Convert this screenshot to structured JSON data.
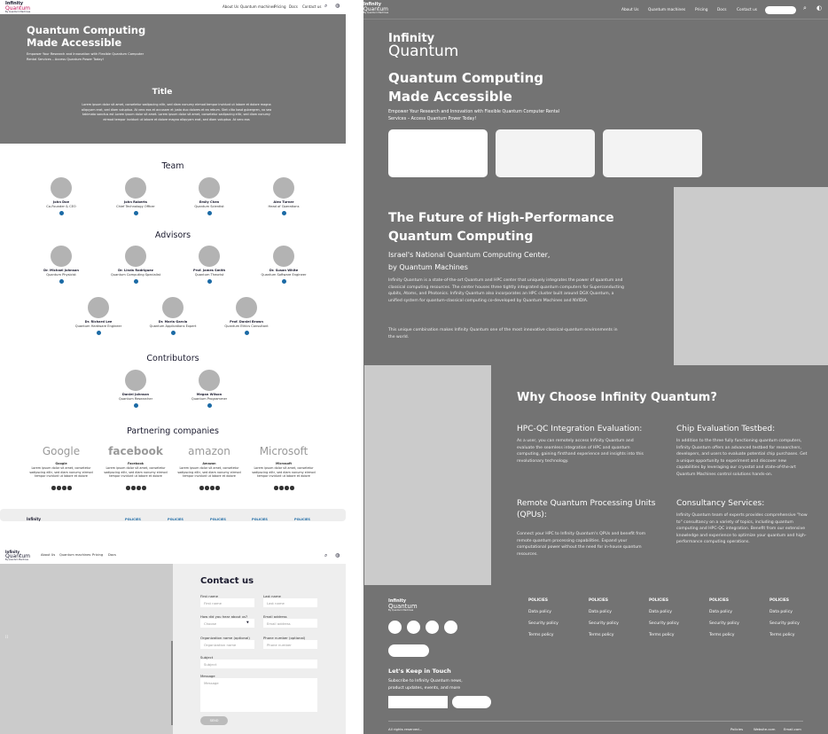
{
  "brand": {
    "line1": "Infinity",
    "line2": "Quantum",
    "sub": "By Quantum Machines"
  },
  "nav": [
    "About Us",
    "Quantum machines",
    "Pricing",
    "Docs",
    "Contact us"
  ],
  "nav2": [
    "About Us",
    "Quantum machines",
    "Pricing",
    "Docs"
  ],
  "hero": {
    "title1": "Quantum Computing",
    "title2": "Made Accessible",
    "subtitle": "Empower Your Research and Innovation with Flexible Quantum Computer Rental Services – Access Quantum Power Today!"
  },
  "intro": {
    "title": "Title",
    "text": "Lorem ipsum dolor sit amet, consetetur sadipscing elitr, sed diam nonumy eirmod tempor invidunt ut labore et dolore magna aliquyam erat, sed diam voluptua. At vero eos et accusam et justo duo dolores et ea rebum. Stet clita kasd gubergren, no sea takimata sanctus est Lorem ipsum dolor sit amet. Lorem ipsum dolor sit amet, consetetur sadipscing elitr, sed diam nonumy eirmod tempor invidunt ut labore et dolore magna aliquyam erat, sed diam voluptua. At vero eos"
  },
  "team": {
    "heading": "Team",
    "members": [
      {
        "name": "John Doe",
        "role": "Co-Founder & CEO"
      },
      {
        "name": "John Roberts",
        "role": "Chief Technology Officer"
      },
      {
        "name": "Emily Chen",
        "role": "Quantum Scientist"
      },
      {
        "name": "Alex Turner",
        "role": "Head of Operations"
      }
    ]
  },
  "advisors": {
    "heading": "Advisors",
    "members": [
      {
        "name": "Dr. Michael Johnson",
        "role": "Quantum Physicist"
      },
      {
        "name": "Dr. Linda Rodriguez",
        "role": "Quantum Computing Specialist"
      },
      {
        "name": "Prof. James Smith",
        "role": "Quantum Theorist"
      },
      {
        "name": "Dr. Susan White",
        "role": "Quantum Software Engineer"
      },
      {
        "name": "Dr. Richard Lee",
        "role": "Quantum Hardware Engineer"
      },
      {
        "name": "Dr. Maria Garcia",
        "role": "Quantum Applications Expert"
      },
      {
        "name": "Prof. Daniel Brown",
        "role": "Quantum Ethics Consultant"
      }
    ]
  },
  "contributors": {
    "heading": "Contributors",
    "members": [
      {
        "name": "Daniel Johnson",
        "role": "Quantum Researcher"
      },
      {
        "name": "Megan Wilson",
        "role": "Quantum Programmer"
      }
    ]
  },
  "partners": {
    "heading": "Partnering companies",
    "items": [
      {
        "logo": "Google",
        "name": "Google",
        "desc": "Lorem ipsum dolor sit amet, consetetur sadipscing elitr, sed diam nonumy eirmod tempor invidunt ut labore et dolore"
      },
      {
        "logo": "facebook",
        "name": "Facebook",
        "desc": "Lorem ipsum dolor sit amet, consetetur sadipscing elitr, sed diam nonumy eirmod tempor invidunt ut labore et dolore"
      },
      {
        "logo": "amazon",
        "name": "Amazon",
        "desc": "Lorem ipsum dolor sit amet, consetetur sadipscing elitr, sed diam nonumy eirmod tempor invidunt ut labore et dolore"
      },
      {
        "logo": "Microsoft",
        "name": "Microsoft",
        "desc": "Lorem ipsum dolor sit amet, consetetur sadipscing elitr, sed diam nonumy eirmod tempor invidunt ut labore et dolore"
      }
    ]
  },
  "footer_strip": {
    "brand": "Infinity",
    "policies": "POLICIES"
  },
  "contact": {
    "heading": "Contact us",
    "fields": [
      {
        "label": "First name",
        "placeholder": "First name"
      },
      {
        "label": "Last name",
        "placeholder": "Last name"
      },
      {
        "label": "How did you hear about us?",
        "placeholder": "Choose"
      },
      {
        "label": "Email address",
        "placeholder": "Email address"
      },
      {
        "label": "Organization name (optional)",
        "placeholder": "Organization name"
      },
      {
        "label": "Phone number (optional)",
        "placeholder": "Phone number"
      },
      {
        "label": "Subject",
        "placeholder": "Subject"
      },
      {
        "label": "Message",
        "placeholder": "Message"
      }
    ],
    "send": "SEND"
  },
  "future": {
    "title1": "The Future of High-Performance",
    "title2": "Quantum Computing",
    "sub1": "Israel's National Quantum Computing Center,",
    "sub2": "by Quantum Machines",
    "p1": "Infinity Quantum is a state-of-the-art Quantum and HPC center that uniquely integrates the power of quantum and classical computing resources. The center houses three tightly integrated quantum computers for Superconducting qubits, Atoms, and Photonics. Infinity Quantum also incorporates an HPC cluster built around DGX Quantum, a unified system for quantum-classical computing co-developed by Quantum Machines and NVIDIA.",
    "p2": "This unique combination makes Infinity Quantum one of the most innovative classical-quantum environments in the world."
  },
  "why": {
    "title": "Why Choose Infinity Quantum?",
    "features": [
      {
        "title": "HPC-QC Integration Evaluation:",
        "text": "As a user, you can remotely access Infinity Quantum and evaluate the seamless integration of HPC and quantum computing, gaining firsthand experience and insights into this revolutionary technology."
      },
      {
        "title": "Chip Evaluation Testbed:",
        "text": "In addition to the three fully functioning quantum computers, Infinity Quantum offers an advanced testbed for researchers, developers, and users to evaluate potential chip purchases. Get a unique opportunity to experiment and discover new capabilities by leveraging our cryostat and state-of-the-art Quantum Machines control solutions hands-on."
      },
      {
        "title": "Remote Quantum Processing Units (QPUs):",
        "text": "Connect your HPC to Infinity Quantum's QPUs and benefit from remote quantum processing capabilities. Expand your computational power without the need for in-house quantum resources."
      },
      {
        "title": "Consultancy Services:",
        "text": "Infinity Quantum team of experts provides comprehensive \"how to\" consultancy on a variety of topics, including quantum computing and HPC-QC integration. Benefit from our extensive knowledge and experience to optimize your quantum and high-performance computing operations."
      }
    ]
  },
  "footer": {
    "policies_heading": "POLICIES",
    "links": [
      "Data policy",
      "Security policy",
      "Terms policy"
    ],
    "keep_title": "Let's Keep in Touch",
    "keep_text": "Subscribe to Infinity Quantum news, product updates, events, and more",
    "rights": "All rights reserved...",
    "bottom_links": [
      "Policies",
      "Website.com",
      "Email.com"
    ]
  },
  "colors": {
    "hero_gray": "#767676",
    "accent": "#c2185b",
    "pin": "#1b6aa5"
  }
}
